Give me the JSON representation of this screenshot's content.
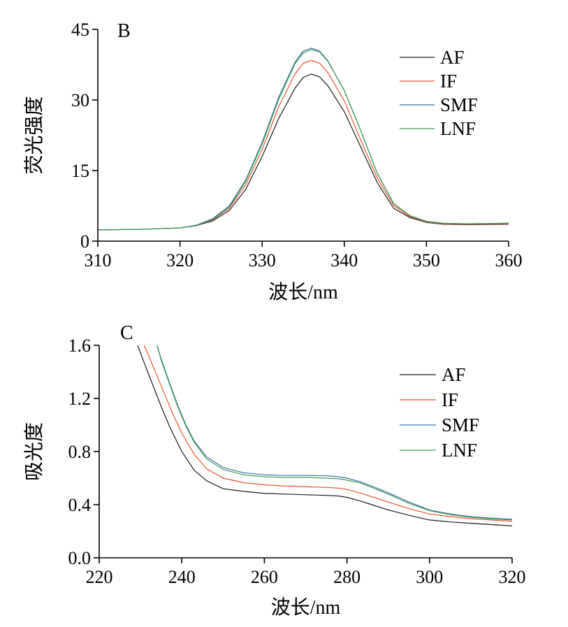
{
  "colors": {
    "AF": "#1a1a1a",
    "IF": "#e8552f",
    "SMF": "#3a76a8",
    "LNF": "#3f9a55"
  },
  "chart_data": [
    {
      "type": "line",
      "panel_label": "B",
      "xlabel": "波长/nm",
      "ylabel": "荧光强度",
      "xlim": [
        310,
        360
      ],
      "ylim": [
        0,
        45
      ],
      "xticks": [
        "310",
        "320",
        "330",
        "340",
        "350",
        "360"
      ],
      "yticks": [
        "0",
        "15",
        "30",
        "45"
      ],
      "legend": "top-right",
      "series": [
        {
          "name": "AF",
          "x": [
            310,
            315,
            320,
            322,
            324,
            326,
            328,
            330,
            332,
            334,
            335,
            336,
            337,
            338,
            340,
            342,
            344,
            346,
            348,
            350,
            352,
            355,
            360
          ],
          "y": [
            2.4,
            2.5,
            2.8,
            3.3,
            4.3,
            6.5,
            11.0,
            18.0,
            26.0,
            32.5,
            34.8,
            35.5,
            34.9,
            33.0,
            27.5,
            20.0,
            12.5,
            7.0,
            5.0,
            4.0,
            3.6,
            3.5,
            3.6
          ]
        },
        {
          "name": "IF",
          "x": [
            310,
            315,
            320,
            322,
            324,
            326,
            328,
            330,
            332,
            334,
            335,
            336,
            337,
            338,
            340,
            342,
            344,
            346,
            348,
            350,
            352,
            355,
            360
          ],
          "y": [
            2.4,
            2.5,
            2.8,
            3.3,
            4.5,
            7.0,
            12.0,
            19.5,
            28.5,
            35.5,
            37.8,
            38.4,
            37.8,
            35.8,
            29.8,
            21.5,
            13.5,
            7.6,
            5.2,
            4.1,
            3.7,
            3.6,
            3.7
          ]
        },
        {
          "name": "SMF",
          "x": [
            310,
            315,
            320,
            322,
            324,
            326,
            328,
            330,
            332,
            334,
            335,
            336,
            337,
            338,
            340,
            342,
            344,
            346,
            348,
            350,
            352,
            355,
            360
          ],
          "y": [
            2.4,
            2.5,
            2.8,
            3.4,
            4.8,
            7.5,
            13.0,
            21.0,
            30.5,
            38.0,
            40.4,
            41.0,
            40.4,
            38.3,
            32.0,
            23.5,
            14.5,
            8.0,
            5.4,
            4.2,
            3.8,
            3.7,
            3.8
          ]
        },
        {
          "name": "LNF",
          "x": [
            310,
            315,
            320,
            322,
            324,
            326,
            328,
            330,
            332,
            334,
            335,
            336,
            337,
            338,
            340,
            342,
            344,
            346,
            348,
            350,
            352,
            355,
            360
          ],
          "y": [
            2.4,
            2.5,
            2.8,
            3.3,
            4.6,
            7.2,
            12.7,
            20.6,
            30.0,
            37.7,
            40.0,
            40.7,
            40.2,
            38.2,
            32.0,
            23.5,
            14.5,
            8.0,
            5.4,
            4.2,
            3.8,
            3.7,
            3.8
          ]
        }
      ]
    },
    {
      "type": "line",
      "panel_label": "C",
      "xlabel": "波长/nm",
      "ylabel": "吸光度",
      "xlim": [
        220,
        320
      ],
      "ylim": [
        0.0,
        1.6
      ],
      "xticks": [
        "220",
        "240",
        "260",
        "280",
        "300",
        "320"
      ],
      "yticks": [
        "0.0",
        "0.4",
        "0.8",
        "1.2",
        "1.6"
      ],
      "legend": "top-right",
      "series": [
        {
          "name": "AF",
          "x": [
            229.3,
            231,
            233,
            235,
            237,
            240,
            243,
            246,
            250,
            255,
            260,
            265,
            270,
            275,
            278,
            280,
            283,
            286,
            290,
            295,
            300,
            305,
            310,
            315,
            320
          ],
          "y": [
            1.6,
            1.46,
            1.3,
            1.14,
            0.99,
            0.8,
            0.66,
            0.58,
            0.52,
            0.5,
            0.485,
            0.48,
            0.475,
            0.47,
            0.465,
            0.455,
            0.43,
            0.4,
            0.36,
            0.32,
            0.285,
            0.27,
            0.26,
            0.25,
            0.24
          ]
        },
        {
          "name": "IF",
          "x": [
            230.9,
            232,
            234,
            236,
            238,
            240,
            243,
            246,
            250,
            255,
            260,
            265,
            270,
            275,
            278,
            280,
            283,
            286,
            290,
            295,
            300,
            305,
            310,
            315,
            320
          ],
          "y": [
            1.6,
            1.52,
            1.37,
            1.22,
            1.07,
            0.94,
            0.78,
            0.67,
            0.6,
            0.565,
            0.55,
            0.54,
            0.535,
            0.53,
            0.525,
            0.515,
            0.49,
            0.46,
            0.42,
            0.37,
            0.33,
            0.31,
            0.295,
            0.285,
            0.275
          ]
        },
        {
          "name": "SMF",
          "x": [
            234.0,
            235,
            237,
            239,
            241,
            243,
            246,
            250,
            255,
            260,
            265,
            270,
            275,
            278,
            280,
            283,
            286,
            290,
            295,
            300,
            305,
            310,
            315,
            320
          ],
          "y": [
            1.6,
            1.5,
            1.32,
            1.15,
            1.0,
            0.88,
            0.76,
            0.68,
            0.64,
            0.625,
            0.62,
            0.62,
            0.618,
            0.61,
            0.6,
            0.575,
            0.54,
            0.49,
            0.42,
            0.36,
            0.33,
            0.31,
            0.298,
            0.29
          ]
        },
        {
          "name": "LNF",
          "x": [
            234.0,
            235,
            237,
            239,
            241,
            243,
            246,
            250,
            255,
            260,
            265,
            270,
            275,
            278,
            280,
            283,
            286,
            290,
            295,
            300,
            305,
            310,
            315,
            320
          ],
          "y": [
            1.6,
            1.49,
            1.31,
            1.14,
            0.99,
            0.87,
            0.745,
            0.665,
            0.625,
            0.61,
            0.605,
            0.605,
            0.6,
            0.595,
            0.585,
            0.565,
            0.53,
            0.48,
            0.41,
            0.355,
            0.325,
            0.305,
            0.293,
            0.285
          ]
        }
      ]
    }
  ]
}
